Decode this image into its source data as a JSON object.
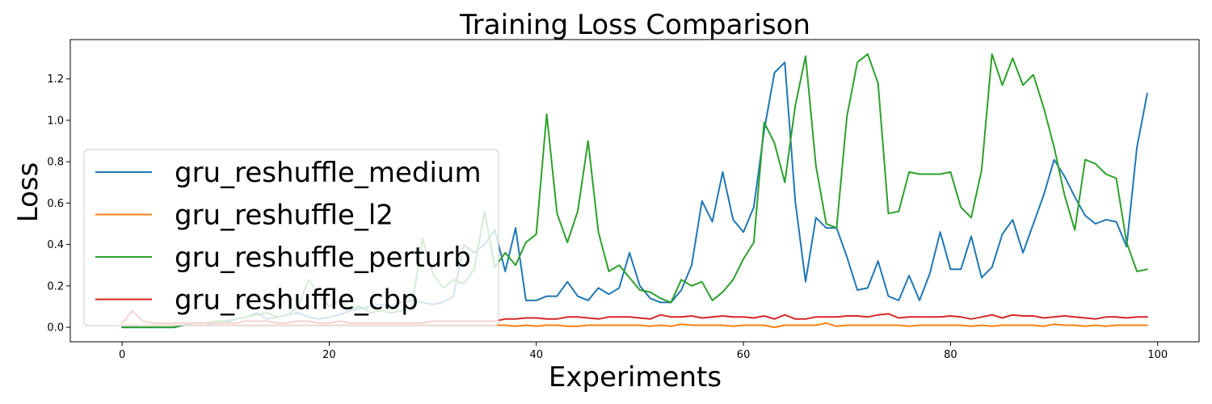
{
  "chart_data": {
    "type": "line",
    "title": "Training Loss Comparison",
    "xlabel": "Experiments",
    "ylabel": "Loss",
    "xlim": [
      -5,
      104
    ],
    "ylim": [
      -0.07,
      1.39
    ],
    "xticks": [
      0,
      20,
      40,
      60,
      80,
      100
    ],
    "yticks": [
      0.0,
      0.2,
      0.4,
      0.6,
      0.8,
      1.0,
      1.2
    ],
    "grid": false,
    "legend_position": "center-left",
    "series": [
      {
        "name": "gru_reshuffle_medium",
        "color": "#1f77b4",
        "values": [
          0.0,
          0.0,
          0.0,
          0.0,
          0.0,
          0.0,
          0.01,
          0.01,
          0.01,
          0.02,
          0.02,
          0.04,
          0.05,
          0.07,
          0.04,
          0.05,
          0.06,
          0.07,
          0.05,
          0.04,
          0.05,
          0.06,
          0.08,
          0.09,
          0.1,
          0.11,
          0.1,
          0.12,
          0.13,
          0.12,
          0.11,
          0.12,
          0.15,
          0.4,
          0.36,
          0.4,
          0.47,
          0.27,
          0.48,
          0.13,
          0.13,
          0.15,
          0.15,
          0.22,
          0.15,
          0.13,
          0.19,
          0.16,
          0.19,
          0.36,
          0.2,
          0.14,
          0.12,
          0.12,
          0.18,
          0.3,
          0.61,
          0.51,
          0.75,
          0.52,
          0.46,
          0.58,
          0.95,
          1.23,
          1.28,
          0.61,
          0.22,
          0.53,
          0.48,
          0.48,
          0.34,
          0.18,
          0.19,
          0.32,
          0.15,
          0.13,
          0.25,
          0.13,
          0.26,
          0.46,
          0.28,
          0.28,
          0.44,
          0.24,
          0.29,
          0.45,
          0.52,
          0.36,
          0.5,
          0.64,
          0.81,
          0.73,
          0.63,
          0.54,
          0.5,
          0.52,
          0.51,
          0.39,
          0.87,
          1.13
        ]
      },
      {
        "name": "gru_reshuffle_l2",
        "color": "#ff7f0e",
        "values": [
          0.01,
          0.01,
          0.01,
          0.01,
          0.01,
          0.01,
          0.01,
          0.01,
          0.01,
          0.01,
          0.01,
          0.01,
          0.01,
          0.01,
          0.01,
          0.01,
          0.01,
          0.01,
          0.01,
          0.01,
          0.01,
          0.01,
          0.01,
          0.01,
          0.01,
          0.01,
          0.01,
          0.01,
          0.01,
          0.01,
          0.01,
          0.01,
          0.01,
          0.01,
          0.01,
          0.01,
          0.01,
          0.01,
          0.005,
          0.01,
          0.005,
          0.01,
          0.01,
          0.005,
          0.005,
          0.01,
          0.01,
          0.01,
          0.01,
          0.01,
          0.01,
          0.005,
          0.01,
          0.005,
          0.015,
          0.01,
          0.01,
          0.01,
          0.01,
          0.005,
          0.01,
          0.01,
          0.01,
          0.0,
          0.01,
          0.01,
          0.01,
          0.01,
          0.02,
          0.005,
          0.01,
          0.01,
          0.01,
          0.01,
          0.01,
          0.01,
          0.005,
          0.01,
          0.01,
          0.01,
          0.01,
          0.01,
          0.005,
          0.01,
          0.005,
          0.01,
          0.01,
          0.01,
          0.01,
          0.005,
          0.015,
          0.01,
          0.01,
          0.005,
          0.01,
          0.005,
          0.01,
          0.01,
          0.01,
          0.01
        ]
      },
      {
        "name": "gru_reshuffle_perturb",
        "color": "#2ca02c",
        "values": [
          0.0,
          0.0,
          0.0,
          0.0,
          0.0,
          0.0,
          0.01,
          0.02,
          0.02,
          0.03,
          0.03,
          0.04,
          0.05,
          0.06,
          0.07,
          0.05,
          0.06,
          0.1,
          0.23,
          0.16,
          0.1,
          0.13,
          0.09,
          0.1,
          0.07,
          0.08,
          0.07,
          0.08,
          0.1,
          0.43,
          0.26,
          0.19,
          0.23,
          0.21,
          0.28,
          0.56,
          0.29,
          0.36,
          0.3,
          0.41,
          0.45,
          1.03,
          0.55,
          0.41,
          0.56,
          0.9,
          0.46,
          0.27,
          0.3,
          0.24,
          0.18,
          0.17,
          0.14,
          0.12,
          0.23,
          0.2,
          0.22,
          0.13,
          0.17,
          0.23,
          0.33,
          0.41,
          0.99,
          0.89,
          0.7,
          1.07,
          1.31,
          0.78,
          0.5,
          0.48,
          1.02,
          1.28,
          1.32,
          1.18,
          0.55,
          0.56,
          0.75,
          0.74,
          0.74,
          0.74,
          0.75,
          0.58,
          0.53,
          0.76,
          1.32,
          1.17,
          1.3,
          1.17,
          1.22,
          1.06,
          0.87,
          0.64,
          0.47,
          0.81,
          0.79,
          0.74,
          0.72,
          0.41,
          0.27,
          0.28
        ]
      },
      {
        "name": "gru_reshuffle_cbp",
        "color": "#d62728",
        "values": [
          0.02,
          0.08,
          0.03,
          0.02,
          0.02,
          0.02,
          0.02,
          0.02,
          0.02,
          0.02,
          0.02,
          0.02,
          0.03,
          0.03,
          0.03,
          0.02,
          0.02,
          0.03,
          0.03,
          0.02,
          0.02,
          0.03,
          0.02,
          0.02,
          0.02,
          0.02,
          0.02,
          0.02,
          0.02,
          0.02,
          0.03,
          0.03,
          0.03,
          0.03,
          0.03,
          0.03,
          0.03,
          0.04,
          0.04,
          0.045,
          0.045,
          0.04,
          0.04,
          0.05,
          0.05,
          0.045,
          0.04,
          0.05,
          0.05,
          0.05,
          0.045,
          0.04,
          0.06,
          0.05,
          0.05,
          0.055,
          0.045,
          0.05,
          0.055,
          0.05,
          0.05,
          0.045,
          0.055,
          0.04,
          0.06,
          0.04,
          0.04,
          0.05,
          0.05,
          0.05,
          0.055,
          0.055,
          0.05,
          0.06,
          0.065,
          0.045,
          0.05,
          0.05,
          0.05,
          0.05,
          0.055,
          0.05,
          0.04,
          0.05,
          0.06,
          0.045,
          0.06,
          0.055,
          0.055,
          0.045,
          0.05,
          0.055,
          0.05,
          0.045,
          0.04,
          0.05,
          0.05,
          0.045,
          0.05,
          0.05
        ]
      }
    ]
  }
}
